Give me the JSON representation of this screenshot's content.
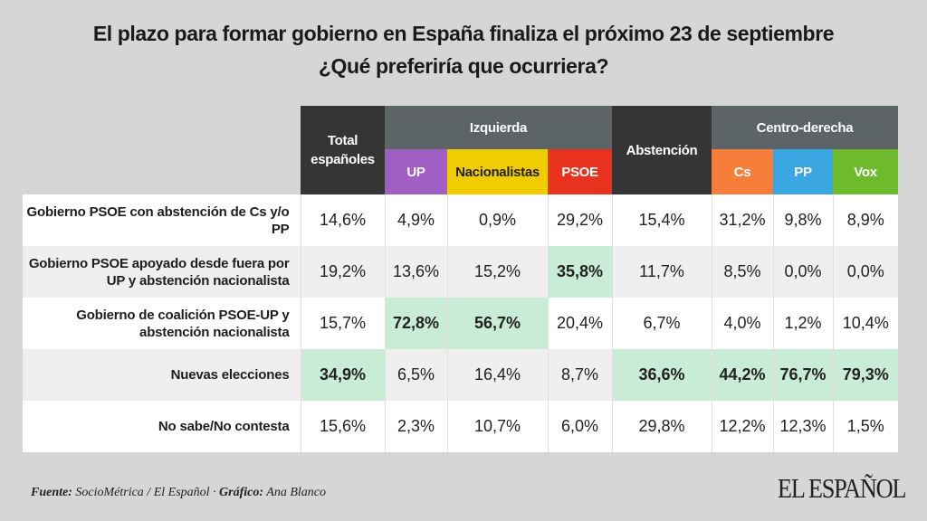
{
  "title": "El plazo para formar gobierno en España finaliza el próximo 23 de septiembre",
  "subtitle": "¿Qué preferiría que ocurriera?",
  "chart_data": {
    "type": "table",
    "headers": {
      "total": "Total españoles",
      "group_left": "Izquierda",
      "abstention": "Abstención",
      "group_right": "Centro-derecha",
      "parties": [
        {
          "name": "UP",
          "color": "#a05fc4",
          "text": "#ffffff"
        },
        {
          "name": "Nacionalistas",
          "color": "#f0cc00",
          "text": "#222222"
        },
        {
          "name": "PSOE",
          "color": "#e8321e",
          "text": "#ffffff"
        },
        {
          "name": "Cs",
          "color": "#f57f3a",
          "text": "#ffffff"
        },
        {
          "name": "PP",
          "color": "#3aa6e2",
          "text": "#ffffff"
        },
        {
          "name": "Vox",
          "color": "#6dbb2d",
          "text": "#ffffff"
        }
      ]
    },
    "columns": [
      "Total españoles",
      "UP",
      "Nacionalistas",
      "PSOE",
      "Abstención",
      "Cs",
      "PP",
      "Vox"
    ],
    "highlight_color": "#c9ecd6",
    "rows": [
      {
        "label": "Gobierno PSOE con abstención de Cs y/o PP",
        "values": [
          "14,6%",
          "4,9%",
          "0,9%",
          "29,2%",
          "15,4%",
          "31,2%",
          "9,8%",
          "8,9%"
        ],
        "highlight": []
      },
      {
        "label": "Gobierno PSOE apoyado desde fuera por UP y abstención nacionalista",
        "values": [
          "19,2%",
          "13,6%",
          "15,2%",
          "35,8%",
          "11,7%",
          "8,5%",
          "0,0%",
          "0,0%"
        ],
        "highlight": [
          3
        ]
      },
      {
        "label": "Gobierno de coalición PSOE-UP y abstención nacionalista",
        "values": [
          "15,7%",
          "72,8%",
          "56,7%",
          "20,4%",
          "6,7%",
          "4,0%",
          "1,2%",
          "10,4%"
        ],
        "highlight": [
          1,
          2
        ]
      },
      {
        "label": "Nuevas elecciones",
        "values": [
          "34,9%",
          "6,5%",
          "16,4%",
          "8,7%",
          "36,6%",
          "44,2%",
          "76,7%",
          "79,3%"
        ],
        "highlight": [
          0,
          4,
          5,
          6,
          7
        ]
      },
      {
        "label": "No sabe/No contesta",
        "values": [
          "15,6%",
          "2,3%",
          "10,7%",
          "6,0%",
          "29,8%",
          "12,2%",
          "12,3%",
          "1,5%"
        ],
        "highlight": []
      }
    ]
  },
  "footer": {
    "source_label": "Fuente:",
    "source": " SocioMétrica / El Español · ",
    "credit_label": "Gráfico:",
    "credit": " Ana Blanco"
  },
  "logo": "EL ESPAÑOL"
}
